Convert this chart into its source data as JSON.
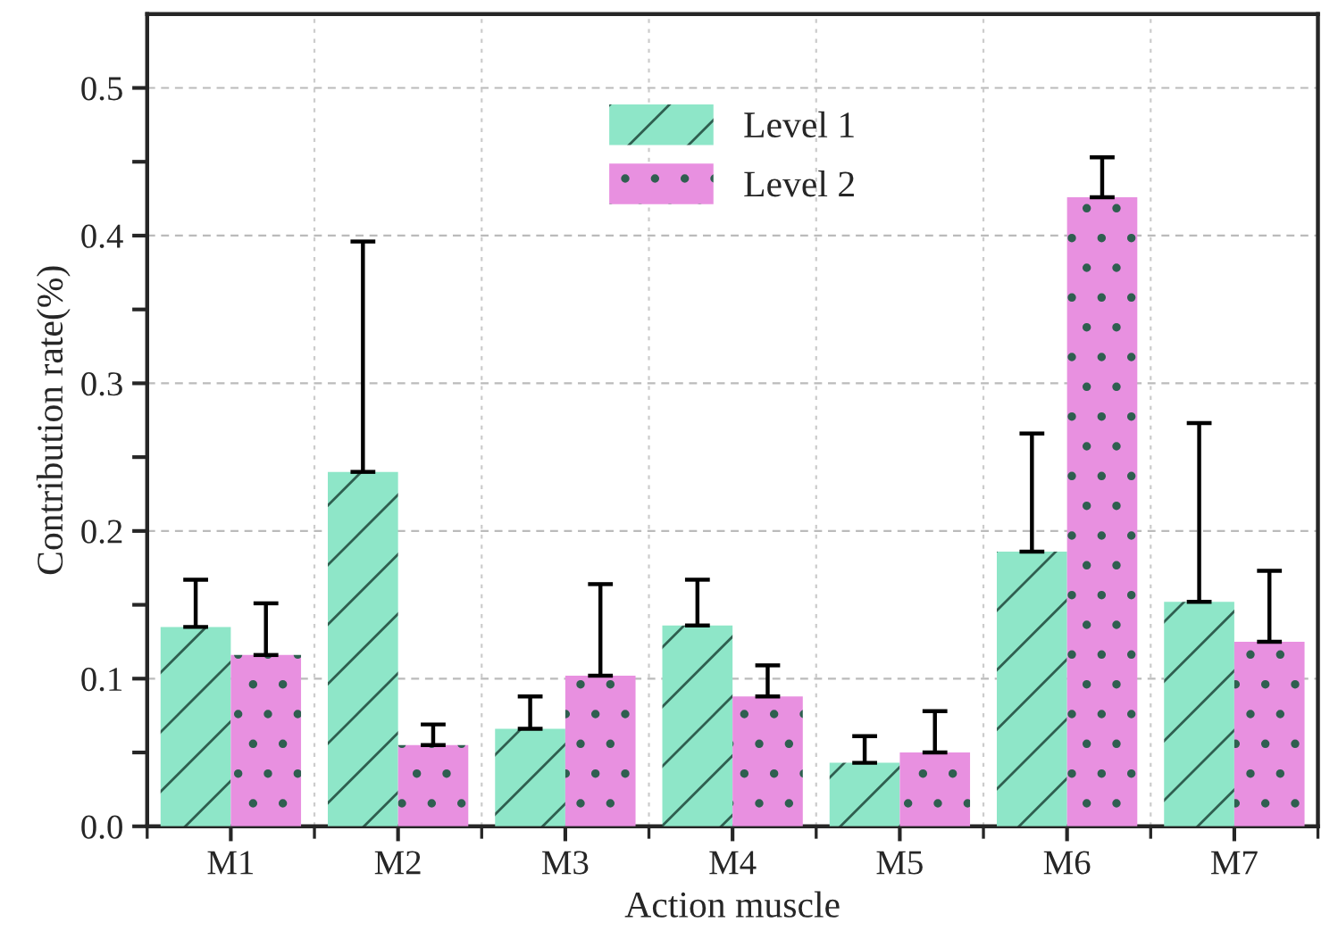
{
  "chart_data": {
    "type": "bar",
    "xlabel": "Action muscle",
    "ylabel": "Contribution rate(%)",
    "categories": [
      "M1",
      "M2",
      "M3",
      "M4",
      "M5",
      "M6",
      "M7"
    ],
    "series": [
      {
        "name": "Level 1",
        "color": "#8ee6c8",
        "values": [
          0.135,
          0.24,
          0.066,
          0.136,
          0.043,
          0.186,
          0.152
        ],
        "errors": [
          [
            0.135,
            0.167
          ],
          [
            0.24,
            0.396
          ],
          [
            0.066,
            0.088
          ],
          [
            0.136,
            0.167
          ],
          [
            0.043,
            0.061
          ],
          [
            0.186,
            0.266
          ],
          [
            0.152,
            0.273
          ]
        ]
      },
      {
        "name": "Level 2",
        "color": "#e890e0",
        "values": [
          0.116,
          0.055,
          0.102,
          0.088,
          0.05,
          0.426,
          0.125
        ],
        "errors": [
          [
            0.116,
            0.151
          ],
          [
            0.055,
            0.069
          ],
          [
            0.102,
            0.164
          ],
          [
            0.088,
            0.109
          ],
          [
            0.05,
            0.078
          ],
          [
            0.426,
            0.453
          ],
          [
            0.125,
            0.173
          ]
        ]
      }
    ],
    "ylim": [
      0,
      0.55
    ],
    "yticks": [
      {
        "value": 0,
        "label": "0.0"
      },
      {
        "value": 0.05,
        "label": null
      },
      {
        "value": 0.1,
        "label": "0.1"
      },
      {
        "value": 0.15,
        "label": null
      },
      {
        "value": 0.2,
        "label": "0.2"
      },
      {
        "value": 0.25,
        "label": null
      },
      {
        "value": 0.3,
        "label": "0.3"
      },
      {
        "value": 0.35,
        "label": null
      },
      {
        "value": 0.4,
        "label": "0.4"
      },
      {
        "value": 0.45,
        "label": null
      },
      {
        "value": 0.5,
        "label": "0.5"
      }
    ],
    "grid": true,
    "legend": "top"
  }
}
